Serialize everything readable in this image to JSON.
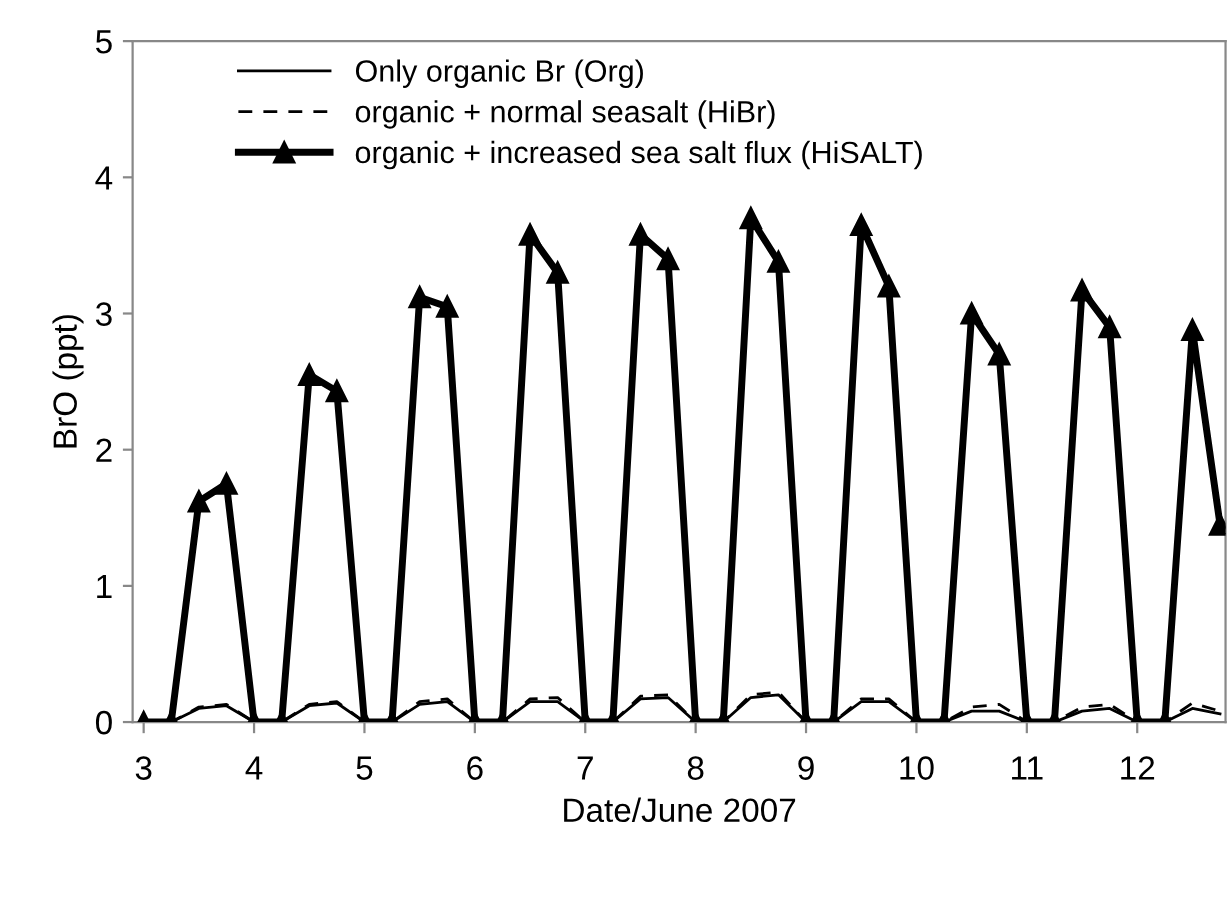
{
  "chart_data": {
    "type": "line",
    "xlabel": "Date/June 2007",
    "ylabel": "BrO (ppt)",
    "x": [
      3,
      3.25,
      3.5,
      3.75,
      4,
      4.25,
      4.5,
      4.75,
      5,
      5.25,
      5.5,
      5.75,
      6,
      6.25,
      6.5,
      6.75,
      7,
      7.25,
      7.5,
      7.75,
      8,
      8.25,
      8.5,
      8.75,
      9,
      9.25,
      9.5,
      9.75,
      10,
      10.25,
      10.5,
      10.75,
      11,
      11.25,
      11.5,
      11.75,
      12,
      12.25,
      12.5,
      12.75
    ],
    "series": [
      {
        "name": "Only organic Br (Org)",
        "color": "#000000",
        "line_style": "solid",
        "values": [
          0,
          0,
          0.1,
          0.12,
          0,
          0,
          0.12,
          0.14,
          0,
          0,
          0.13,
          0.15,
          0,
          0,
          0.15,
          0.15,
          0,
          0,
          0.17,
          0.18,
          0,
          0,
          0.18,
          0.2,
          0,
          0,
          0.15,
          0.15,
          0,
          0,
          0.08,
          0.08,
          0,
          0,
          0.08,
          0.1,
          0,
          0,
          0.1,
          0.06
        ]
      },
      {
        "name": "organic + normal seasalt (HiBr)",
        "color": "#000000",
        "line_style": "dashed",
        "values": [
          0,
          0,
          0.11,
          0.13,
          0,
          0,
          0.13,
          0.15,
          0,
          0,
          0.15,
          0.17,
          0,
          0,
          0.17,
          0.18,
          0,
          0,
          0.19,
          0.2,
          0,
          0,
          0.2,
          0.22,
          0,
          0,
          0.17,
          0.17,
          0,
          0,
          0.11,
          0.13,
          0,
          0,
          0.11,
          0.13,
          0,
          0,
          0.14,
          0.08
        ]
      },
      {
        "name": "organic + increased sea salt flux (HiSALT)",
        "color": "#000000",
        "line_style": "solid",
        "marker": "triangle",
        "values": [
          0,
          0,
          1.62,
          1.75,
          0,
          0,
          2.55,
          2.43,
          0,
          0,
          3.12,
          3.05,
          0,
          0,
          3.58,
          3.3,
          0,
          0,
          3.58,
          3.4,
          0,
          0,
          3.7,
          3.38,
          0,
          0,
          3.65,
          3.2,
          0,
          0,
          3.0,
          2.7,
          0,
          0,
          3.17,
          2.9,
          0,
          0,
          2.88,
          1.45
        ]
      }
    ],
    "xlim": [
      2.9,
      12.8
    ],
    "xticks": [
      3,
      4,
      5,
      6,
      7,
      8,
      9,
      10,
      11,
      12
    ],
    "ylim": [
      0,
      5
    ],
    "yticks": [
      0,
      1,
      2,
      3,
      4,
      5
    ],
    "grid": false,
    "legend": "top left"
  }
}
